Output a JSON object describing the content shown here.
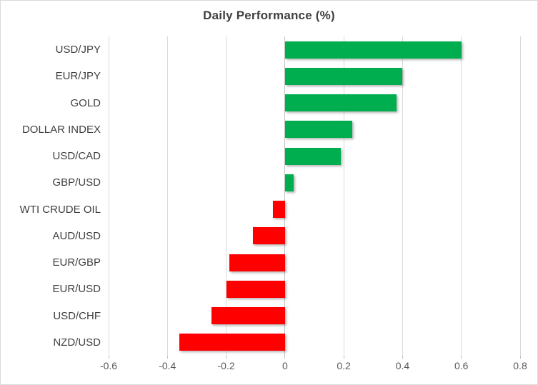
{
  "chart_data": {
    "type": "bar",
    "orientation": "horizontal",
    "title": "Daily Performance (%)",
    "categories": [
      "USD/JPY",
      "EUR/JPY",
      "GOLD",
      "DOLLAR INDEX",
      "USD/CAD",
      "GBP/USD",
      "WTI CRUDE OIL",
      "AUD/USD",
      "EUR/GBP",
      "EUR/USD",
      "USD/CHF",
      "NZD/USD"
    ],
    "values": [
      0.6,
      0.4,
      0.38,
      0.23,
      0.19,
      0.03,
      -0.04,
      -0.11,
      -0.19,
      -0.2,
      -0.25,
      -0.36
    ],
    "xlabel": "",
    "ylabel": "",
    "xlim": [
      -0.6,
      0.8
    ],
    "xticks": [
      -0.6,
      -0.4,
      -0.2,
      0,
      0.2,
      0.4,
      0.6,
      0.8
    ],
    "xtick_labels": [
      "-0.6",
      "-0.4",
      "-0.2",
      "0",
      "0.2",
      "0.4",
      "0.6",
      "0.8"
    ],
    "grid": "vertical-only",
    "legend": "none",
    "colors": {
      "positive": "#00AE50",
      "negative": "#FF0000",
      "gridline": "#d9d9d9",
      "zero_axis": "#bfbfbf",
      "title_text": "#404040",
      "category_text": "#404040",
      "tick_text": "#595959"
    }
  }
}
